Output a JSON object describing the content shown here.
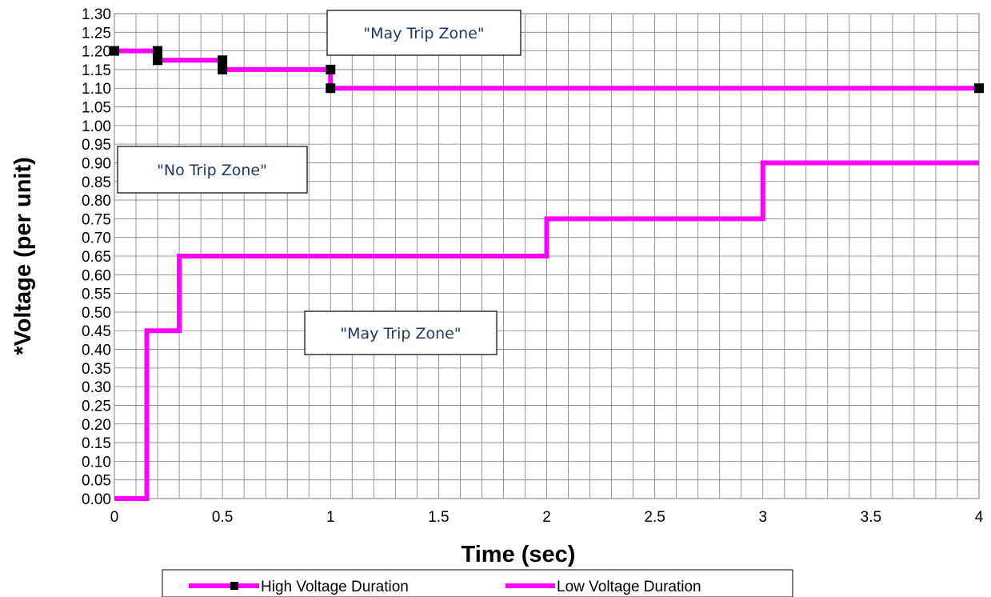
{
  "chart_data": {
    "type": "line",
    "xlabel": "Time (sec)",
    "ylabel": "*Voltage (per unit)",
    "xlim": [
      0,
      4
    ],
    "ylim": [
      0,
      1.3
    ],
    "x_ticks": [
      "0",
      "0.5",
      "1",
      "1.5",
      "2",
      "2.5",
      "3",
      "3.5",
      "4"
    ],
    "y_ticks": [
      "0.00",
      "0.05",
      "0.10",
      "0.15",
      "0.20",
      "0.25",
      "0.30",
      "0.35",
      "0.40",
      "0.45",
      "0.50",
      "0.55",
      "0.60",
      "0.65",
      "0.70",
      "0.75",
      "0.80",
      "0.85",
      "0.90",
      "0.95",
      "1.00",
      "1.05",
      "1.10",
      "1.15",
      "1.20",
      "1.25",
      "1.30"
    ],
    "grid": true,
    "legend_position": "bottom",
    "series": [
      {
        "name": "High Voltage Duration",
        "color": "#ff00ff",
        "marker": "square",
        "marker_color": "#000000",
        "x": [
          0,
          0.2,
          0.2,
          0.5,
          0.5,
          1,
          1,
          4
        ],
        "y": [
          1.2,
          1.2,
          1.175,
          1.175,
          1.15,
          1.15,
          1.1,
          1.1
        ]
      },
      {
        "name": "Low Voltage Duration",
        "color": "#ff00ff",
        "marker": "none",
        "x": [
          0,
          0.15,
          0.15,
          0.3,
          0.3,
          2,
          2,
          3,
          3,
          4
        ],
        "y": [
          0,
          0,
          0.45,
          0.45,
          0.65,
          0.65,
          0.75,
          0.75,
          0.9,
          0.9
        ]
      }
    ],
    "annotations": [
      {
        "text": "\"May Trip Zone\""
      },
      {
        "text": "\"No Trip Zone\""
      },
      {
        "text": "\"May Trip Zone\""
      }
    ]
  }
}
